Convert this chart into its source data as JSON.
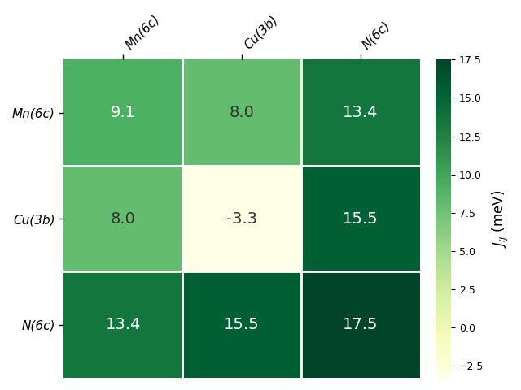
{
  "labels": [
    "Mn(6c)",
    "Cu(3b)",
    "N(6c)"
  ],
  "matrix": [
    [
      9.1,
      8.0,
      13.4
    ],
    [
      8.0,
      -3.3,
      15.5
    ],
    [
      13.4,
      15.5,
      17.5
    ]
  ],
  "vmin": -3.3,
  "vmax": 17.5,
  "cmap": "YlGn",
  "colorbar_label": "$\\it{J_{ij}}$ (meV)",
  "colorbar_ticks": [
    -2.5,
    0.0,
    2.5,
    5.0,
    7.5,
    10.0,
    12.5,
    15.0,
    17.5
  ],
  "figsize": [
    6.4,
    4.8
  ],
  "dpi": 100
}
